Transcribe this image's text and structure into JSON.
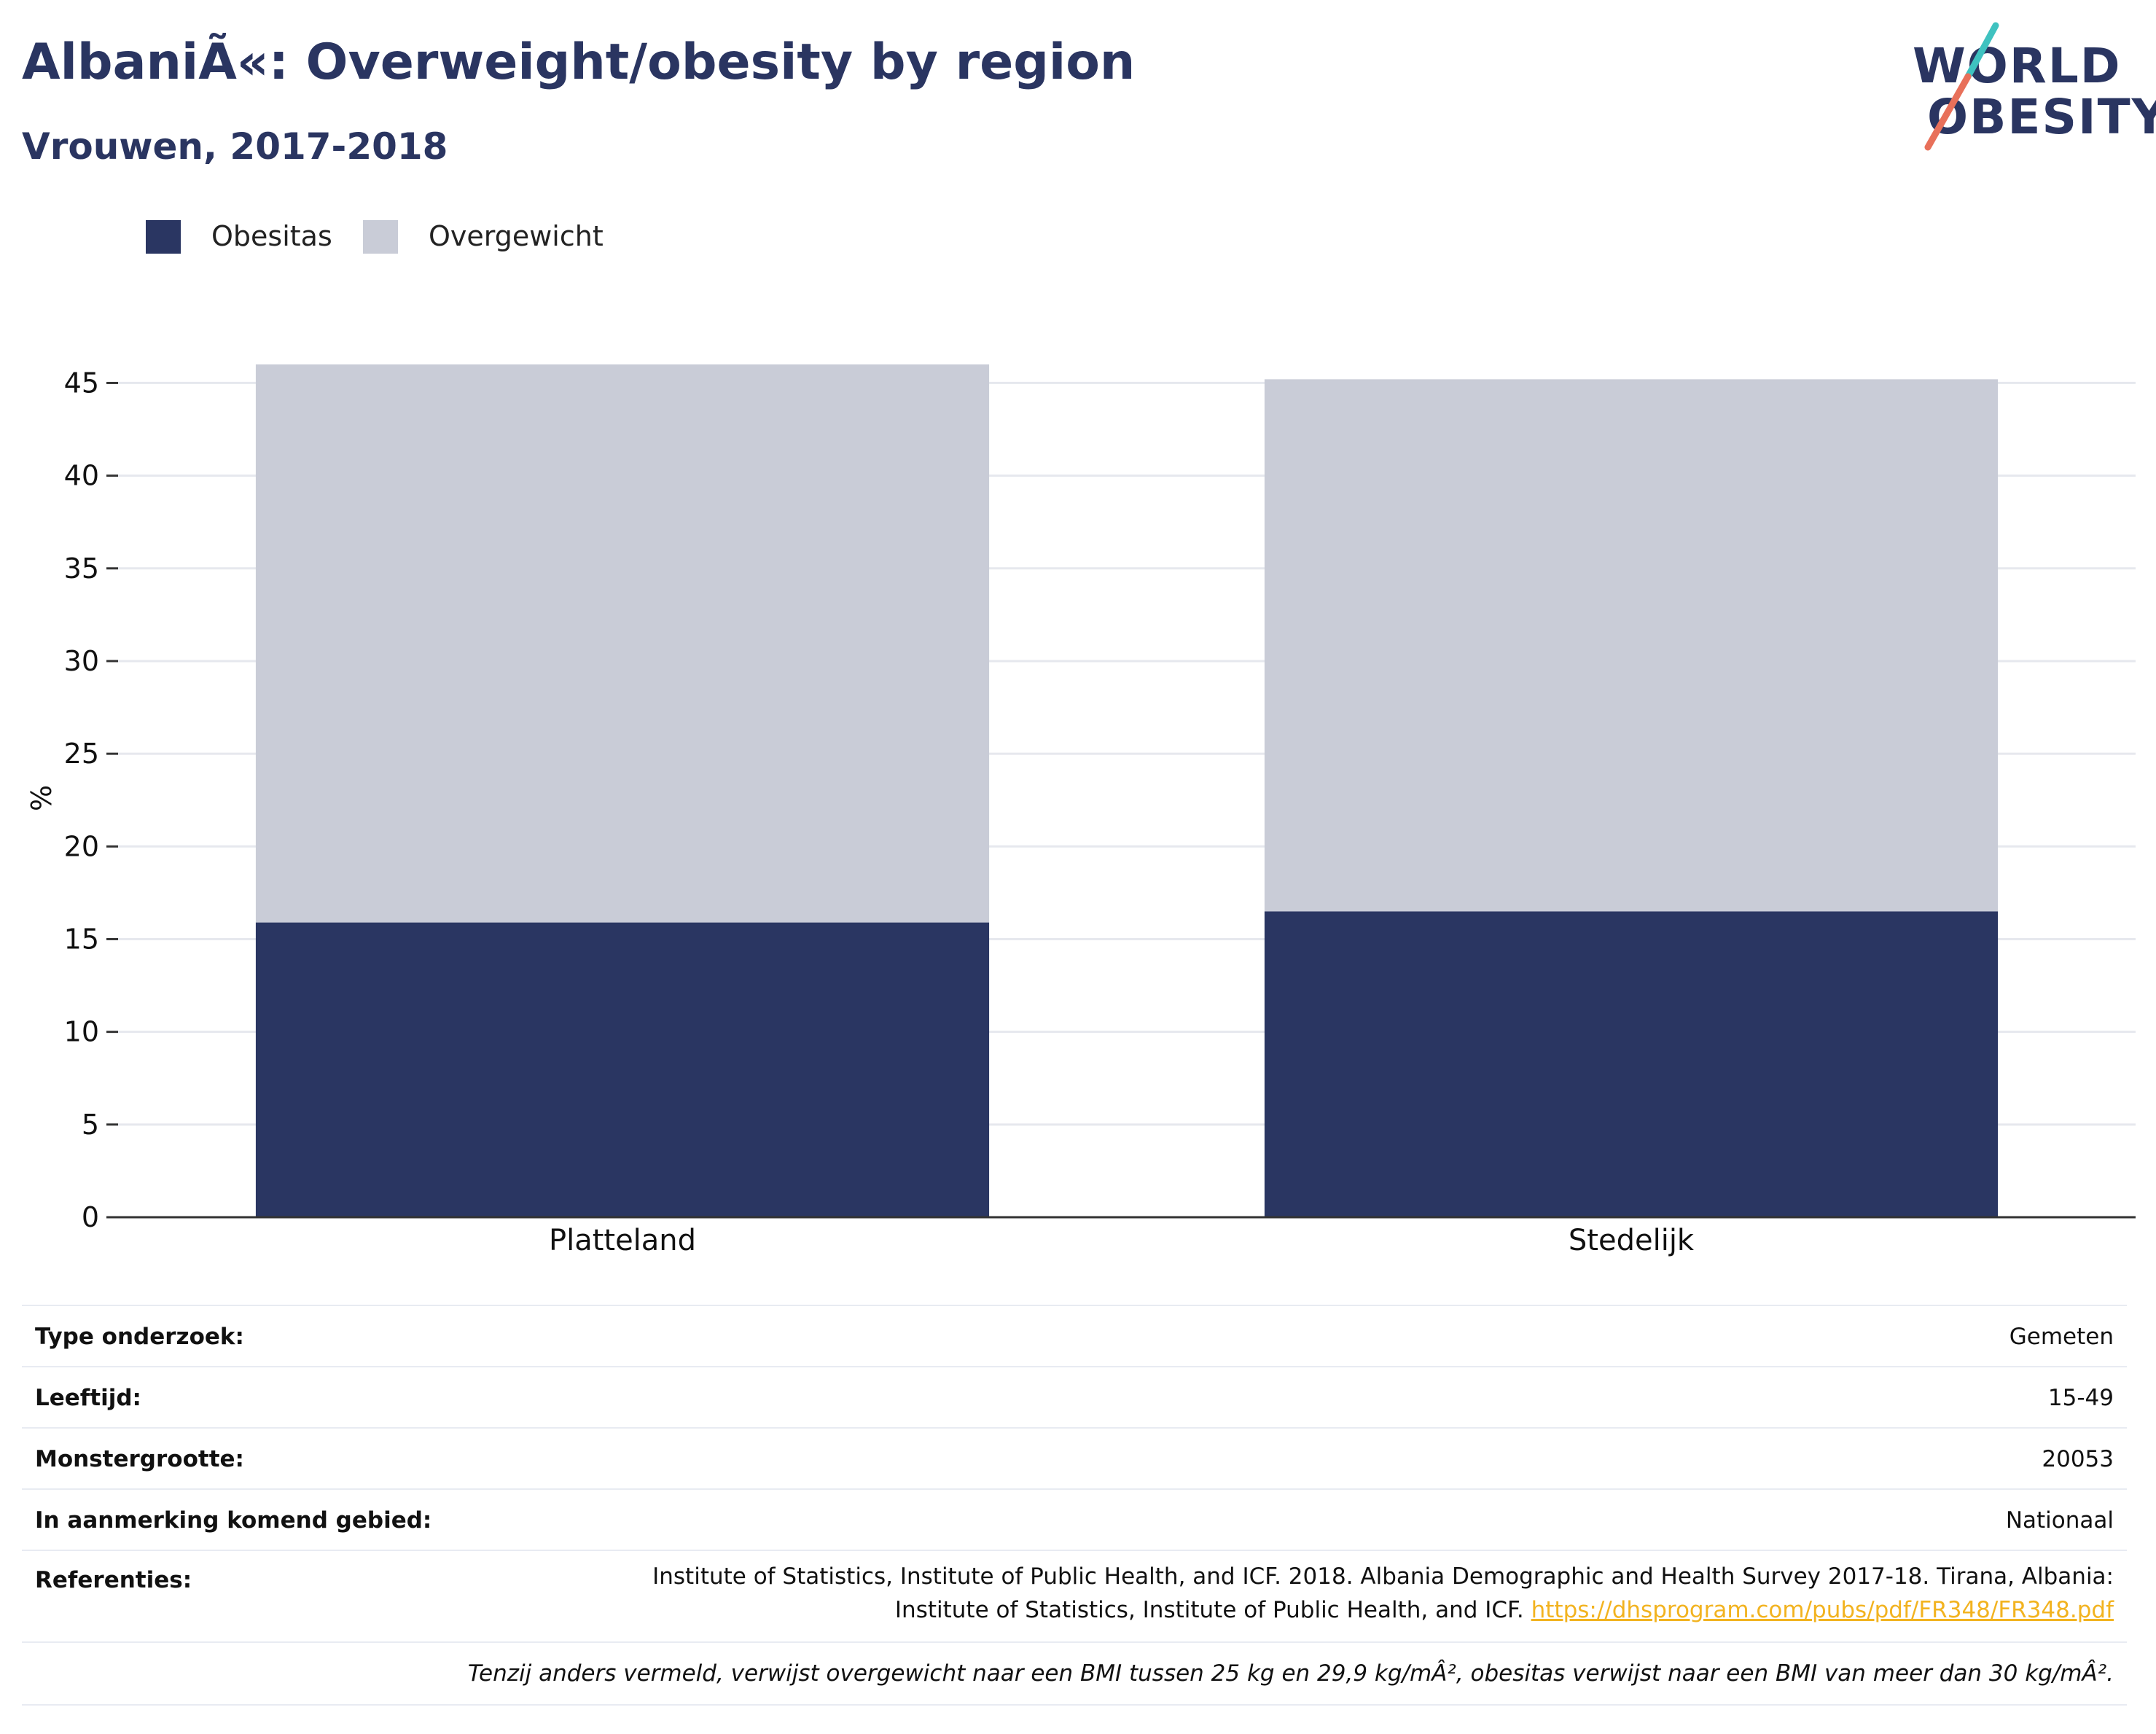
{
  "header": {
    "title": "AlbaniÃ«: Overweight/obesity by region",
    "subtitle": "Vrouwen, 2017-2018"
  },
  "logo": {
    "line1": "WORLD",
    "line2": "OBESITY",
    "colors": {
      "text": "#2a3561",
      "slash_top": "#3fc2c0",
      "slash_bottom": "#e8705a"
    }
  },
  "legend": [
    {
      "label": "Obesitas",
      "color": "#2a3662"
    },
    {
      "label": "Overgewicht",
      "color": "#c9ccd7"
    }
  ],
  "chart_data": {
    "type": "bar",
    "stacked": true,
    "categories": [
      "Platteland",
      "Stedelijk"
    ],
    "series": [
      {
        "name": "Obesitas",
        "values": [
          15.9,
          16.5
        ],
        "color": "#2a3662"
      },
      {
        "name": "Overgewicht",
        "values": [
          30.1,
          28.7
        ],
        "color": "#c9ccd7"
      }
    ],
    "ylabel": "%",
    "ylim": [
      0,
      46
    ],
    "yticks": [
      0,
      5,
      10,
      15,
      20,
      25,
      30,
      35,
      40,
      45
    ],
    "grid": true,
    "legend_position": "top-left"
  },
  "info": {
    "survey_type": {
      "label": "Type onderzoek:",
      "value": "Gemeten"
    },
    "age": {
      "label": "Leeftijd:",
      "value": "15-49"
    },
    "sample_size": {
      "label": "Monstergrootte:",
      "value": "20053"
    },
    "area": {
      "label": "In aanmerking komend gebied:",
      "value": "Nationaal"
    },
    "references": {
      "label": "Referenties:",
      "line1": "Institute of Statistics, Institute of Public Health, and ICF. 2018. Albania Demographic and Health Survey 2017-18. Tirana, Albania:",
      "line2": "Institute of Statistics, Institute of Public Health, and ICF.",
      "link": "https://dhsprogram.com/pubs/pdf/FR348/FR348.pdf"
    },
    "note": "Tenzij anders vermeld, verwijst overgewicht naar een BMI tussen 25 kg en 29,9 kg/mÂ², obesitas verwijst naar een BMI van meer dan 30 kg/mÂ²."
  }
}
